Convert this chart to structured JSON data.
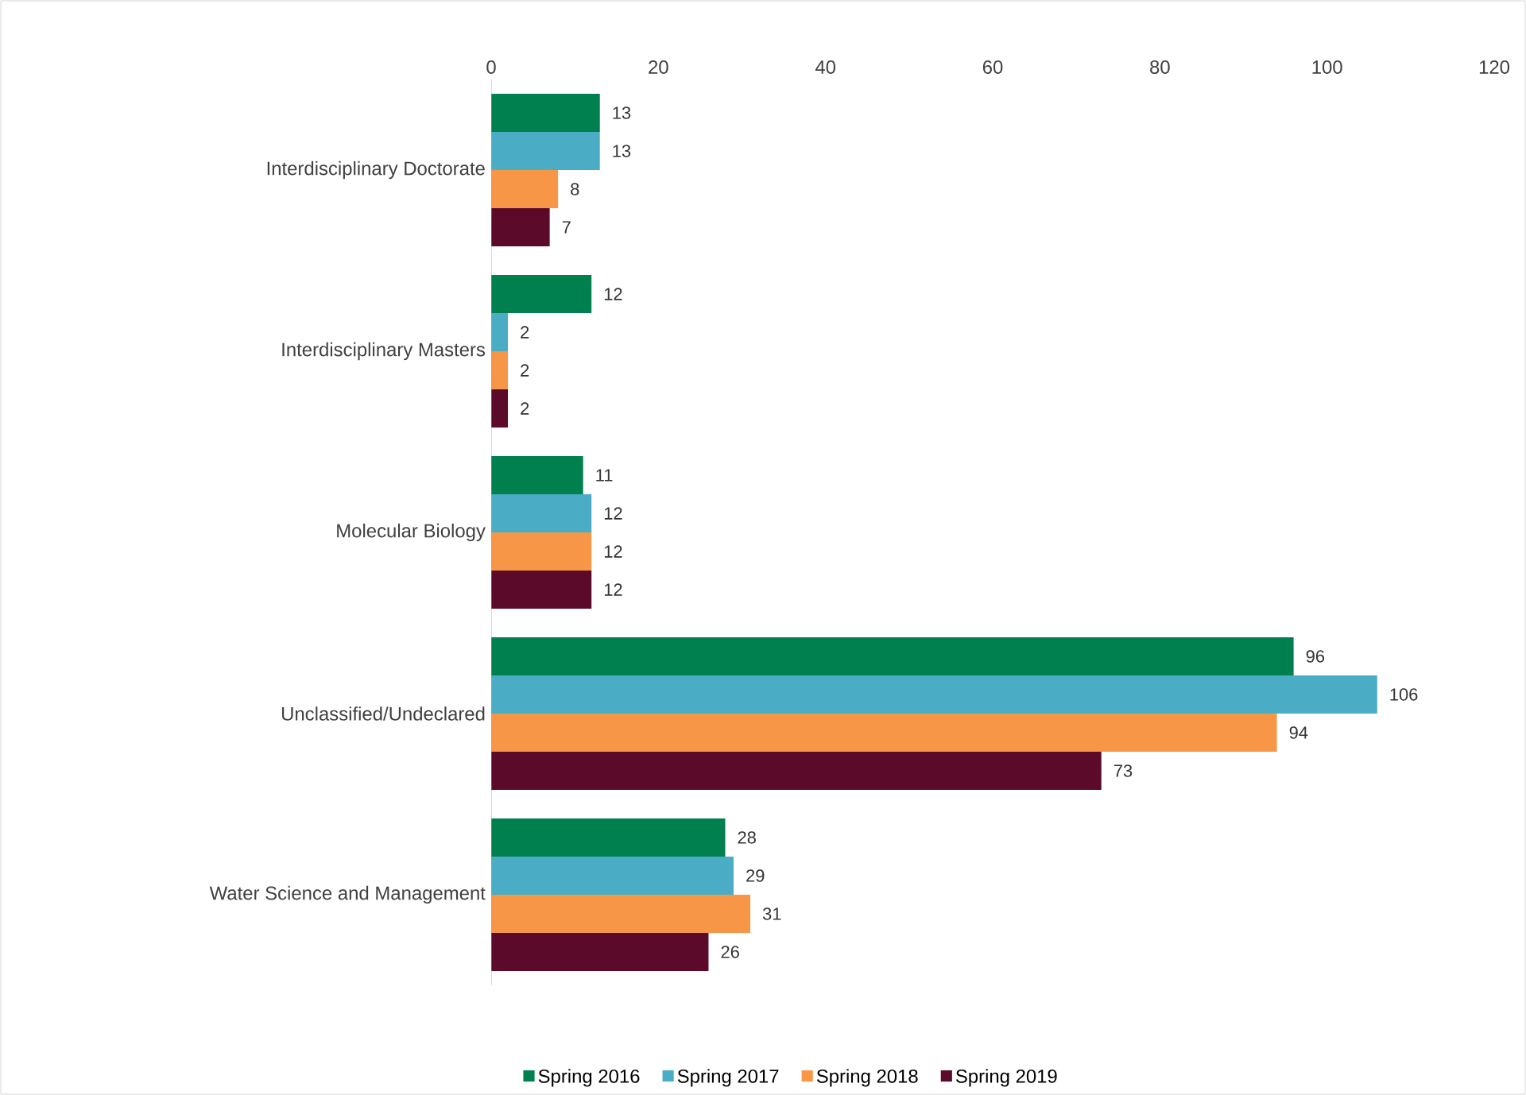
{
  "chart_data": {
    "type": "bar",
    "orientation": "horizontal",
    "categories": [
      "Interdisciplinary Doctorate",
      "Interdisciplinary Masters",
      "Molecular Biology",
      "Unclassified/Undeclared",
      "Water Science and Management"
    ],
    "series": [
      {
        "name": "Spring 2016",
        "color": "#00804f",
        "values": [
          13,
          12,
          11,
          96,
          28
        ]
      },
      {
        "name": "Spring 2017",
        "color": "#4bacc6",
        "values": [
          13,
          2,
          12,
          106,
          29
        ]
      },
      {
        "name": "Spring 2018",
        "color": "#f79646",
        "values": [
          8,
          2,
          12,
          94,
          31
        ]
      },
      {
        "name": "Spring 2019",
        "color": "#5c0a2a",
        "values": [
          7,
          2,
          12,
          73,
          26
        ]
      }
    ],
    "xlim": [
      0,
      120
    ],
    "xticks": [
      0,
      20,
      40,
      60,
      80,
      100,
      120
    ],
    "data_labels": true,
    "legend": "bottom",
    "grid": false
  }
}
